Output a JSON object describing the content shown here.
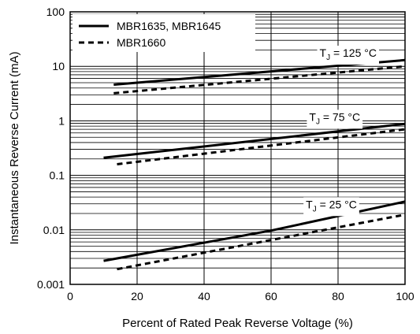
{
  "chart_data": {
    "type": "line",
    "xlabel": "Percent of Rated Peak Reverse Voltage (%)",
    "ylabel": "Instantaneous Reverse Current (mA)",
    "x_ticks": [
      "0",
      "20",
      "40",
      "60",
      "80",
      "100"
    ],
    "y_ticks": [
      "0.001",
      "0.01",
      "0.1",
      "1",
      "10",
      "100"
    ],
    "xlim": [
      0,
      100
    ],
    "ylim": [
      0.001,
      100
    ],
    "y_scale": "log",
    "grid": true,
    "legend_position": "top-left",
    "legend": [
      {
        "label": "MBR1635, MBR1645",
        "style": "solid"
      },
      {
        "label": "MBR1660",
        "style": "dashed"
      }
    ],
    "annotations": [
      {
        "prefix": "T",
        "sub": "J",
        "text": " = 125 °C",
        "x": 83,
        "y": 15
      },
      {
        "prefix": "T",
        "sub": "J",
        "text": " = 75 °C",
        "x": 79,
        "y": 1.0
      },
      {
        "prefix": "T",
        "sub": "J",
        "text": " = 25 °C",
        "x": 78,
        "y": 0.025
      }
    ],
    "series": [
      {
        "temp": "125 °C",
        "style": "solid",
        "x": [
          13,
          100
        ],
        "y": [
          4.6,
          13
        ]
      },
      {
        "temp": "125 °C",
        "style": "dashed",
        "x": [
          13,
          100
        ],
        "y": [
          3.2,
          10
        ]
      },
      {
        "temp": "75 °C",
        "style": "solid",
        "x": [
          10,
          100
        ],
        "y": [
          0.21,
          0.88
        ]
      },
      {
        "temp": "75 °C",
        "style": "dashed",
        "x": [
          14,
          100
        ],
        "y": [
          0.16,
          0.7
        ]
      },
      {
        "temp": "25 °C",
        "style": "solid",
        "x": [
          10,
          60,
          100
        ],
        "y": [
          0.0027,
          0.0097,
          0.033
        ]
      },
      {
        "temp": "25 °C",
        "style": "dashed",
        "x": [
          14,
          100
        ],
        "y": [
          0.0019,
          0.019
        ]
      }
    ]
  }
}
